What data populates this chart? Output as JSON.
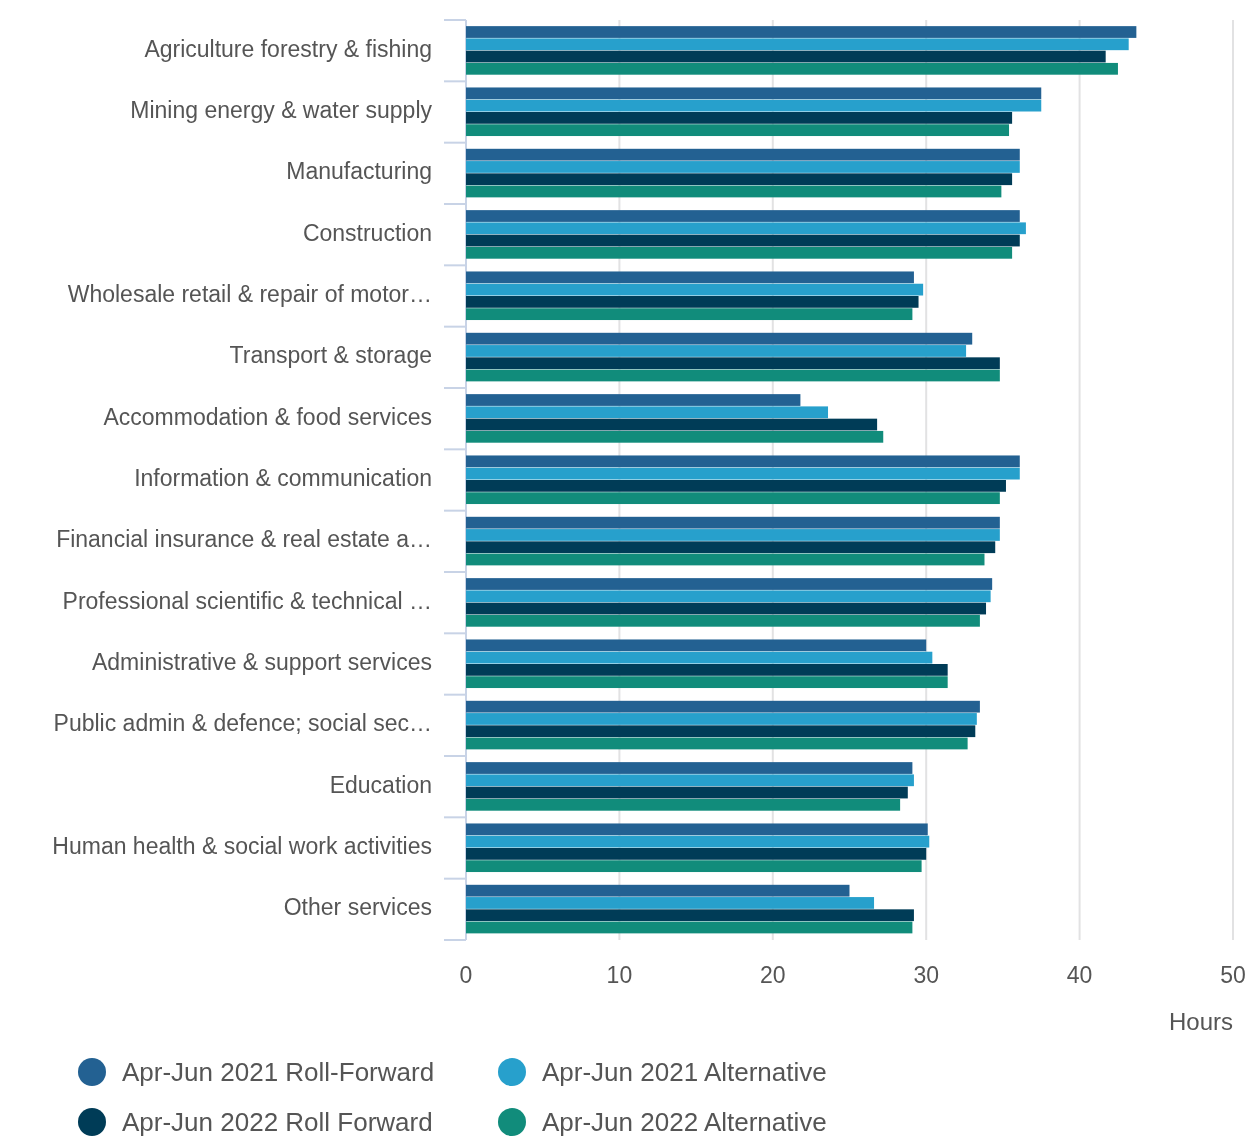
{
  "chart_data": {
    "type": "bar",
    "orientation": "horizontal",
    "xlabel": "Hours",
    "categories": [
      "Agriculture forestry & fishing",
      "Mining energy & water supply",
      "Manufacturing",
      "Construction",
      "Wholesale retail & repair of motor…",
      "Transport & storage",
      "Accommodation & food services",
      "Information & communication",
      "Financial insurance & real estate a…",
      "Professional scientific & technical …",
      "Administrative & support services",
      "Public admin & defence; social sec…",
      "Education",
      "Human health & social work activities",
      "Other services"
    ],
    "series": [
      {
        "name": "Apr-Jun 2021 Roll-Forward",
        "color": "#236192",
        "values": [
          43.7,
          37.5,
          36.1,
          36.1,
          29.2,
          33.0,
          21.8,
          36.1,
          34.8,
          34.3,
          30.0,
          33.5,
          29.1,
          30.1,
          25.0
        ]
      },
      {
        "name": "Apr-Jun 2021 Alternative",
        "color": "#27a0cc",
        "values": [
          43.2,
          37.5,
          36.1,
          36.5,
          29.8,
          32.6,
          23.6,
          36.1,
          34.8,
          34.2,
          30.4,
          33.3,
          29.2,
          30.2,
          26.6
        ]
      },
      {
        "name": "Apr-Jun 2022 Roll Forward",
        "color": "#003c57",
        "values": [
          41.7,
          35.6,
          35.6,
          36.1,
          29.5,
          34.8,
          26.8,
          35.2,
          34.5,
          33.9,
          31.4,
          33.2,
          28.8,
          30.0,
          29.2
        ]
      },
      {
        "name": "Apr-Jun 2022 Alternative",
        "color": "#118c7b",
        "values": [
          42.5,
          35.4,
          34.9,
          35.6,
          29.1,
          34.8,
          27.2,
          34.8,
          33.8,
          33.5,
          31.4,
          32.7,
          28.3,
          29.7,
          29.1
        ]
      }
    ],
    "xlim": [
      0,
      50
    ],
    "xticks": [
      0,
      10,
      20,
      30,
      40,
      50
    ],
    "grid": "x",
    "legend": "bottom"
  }
}
